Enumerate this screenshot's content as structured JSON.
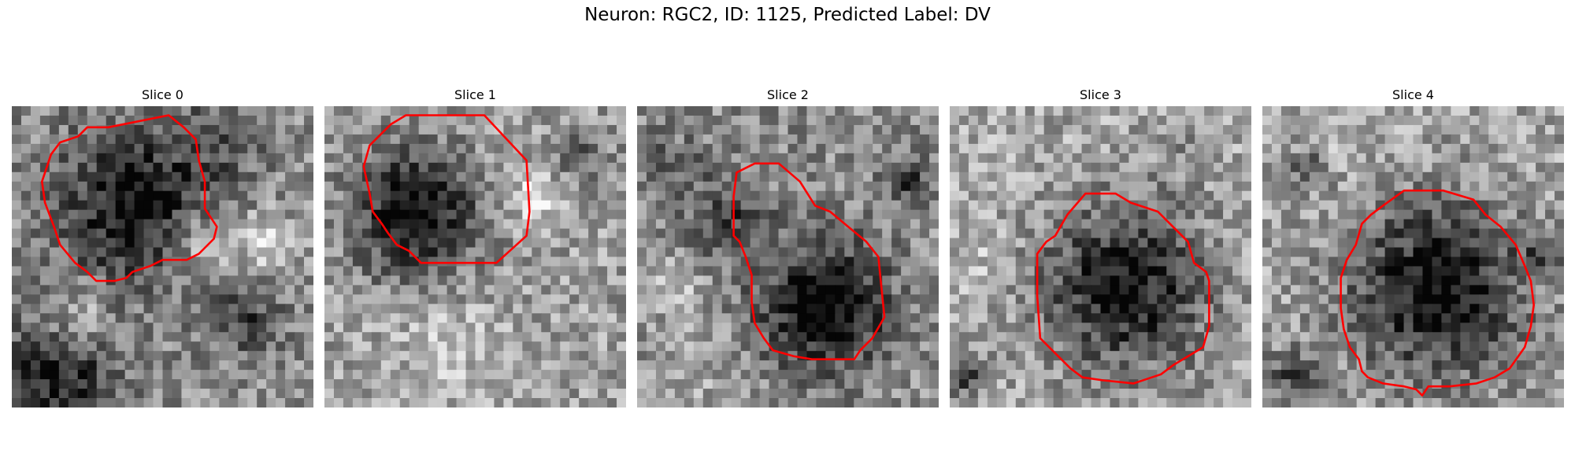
{
  "figure": {
    "title": "Neuron: RGC2, ID: 1125, Predicted Label: DV"
  },
  "panels": [
    {
      "title": "Slice 0"
    },
    {
      "title": "Slice 1"
    },
    {
      "title": "Slice 2"
    },
    {
      "title": "Slice 3"
    },
    {
      "title": "Slice 4"
    }
  ],
  "colors": {
    "contour": "#ff0000",
    "background": "#ffffff"
  }
}
